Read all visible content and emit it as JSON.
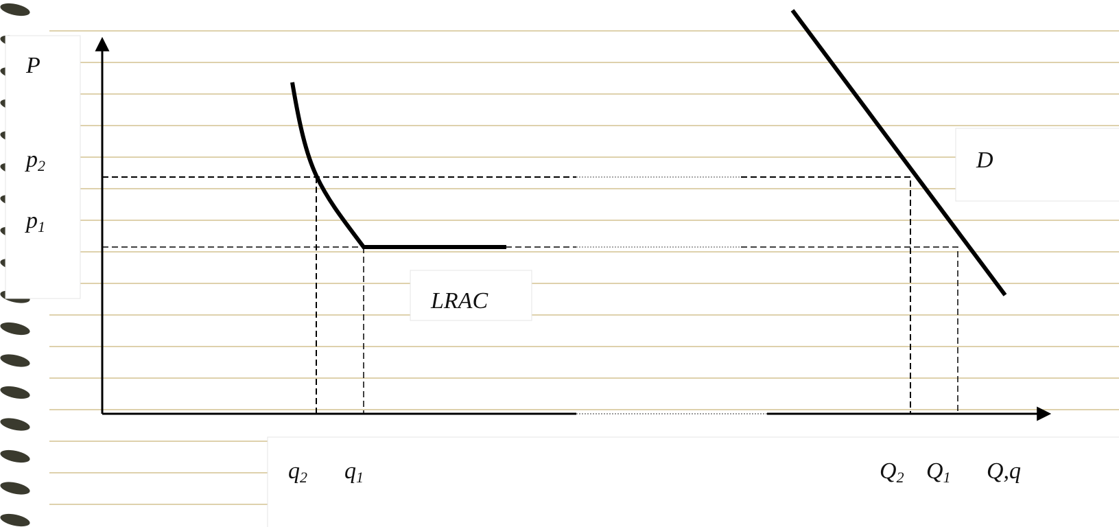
{
  "axes": {
    "y_label": "P",
    "x_label": "Q,q"
  },
  "price_labels": [
    {
      "symbol": "p",
      "subscript": "2"
    },
    {
      "symbol": "p",
      "subscript": "1"
    }
  ],
  "quantity_labels": [
    {
      "symbol": "q",
      "subscript": "2"
    },
    {
      "symbol": "q",
      "subscript": "1"
    },
    {
      "symbol": "Q",
      "subscript": "2"
    },
    {
      "symbol": "Q",
      "subscript": "1"
    }
  ],
  "curves": {
    "cost": "LRAC",
    "demand": "D"
  }
}
